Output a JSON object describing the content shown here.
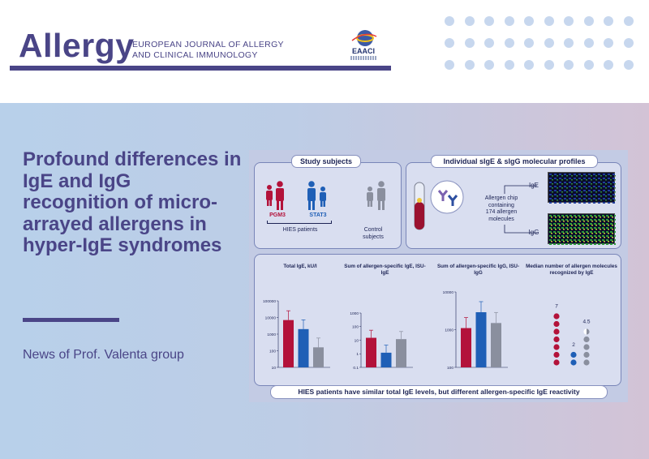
{
  "header": {
    "brand": "Allergy",
    "journal_line1": "European Journal of Allergy",
    "journal_line2": "and Clinical Immunology",
    "society_logo": "EAACI"
  },
  "banner": {
    "headline": "Profound differences in IgE and IgG recognition of  micro- arrayed allergens in hyper-IgE syndromes",
    "news": "News of Prof. Valenta group"
  },
  "figure": {
    "study_title": "Study subjects",
    "profile_title": "Individual sIgE & sIgG molecular profiles",
    "pgm3": "PGM3",
    "stat3": "STAT3",
    "hies": "HIES patients",
    "control_line1": "Control",
    "control_line2": "subjects",
    "chip_line1": "Allergen chip",
    "chip_line2": "containing",
    "chip_line3": "174 allergen",
    "chip_line4": "molecules",
    "ige": "IgE",
    "igg": "IgG",
    "conclusion": "HIES patients have similar total IgE levels, but different allergen-specific IgE reactivity",
    "colors": {
      "pgm3": "#b3123a",
      "stat3": "#1f5fb6",
      "control": "#8a8f9e"
    }
  },
  "chart_data": [
    {
      "type": "bar",
      "title": "Total IgE, kU/l",
      "categories": [
        "PGM3",
        "STAT3",
        "Control subjects"
      ],
      "values": [
        7000,
        2000,
        160
      ],
      "yscale": "log",
      "ylim": [
        10,
        100000
      ],
      "ticks": [
        "10",
        "100",
        "1000",
        "10000",
        "100000"
      ]
    },
    {
      "type": "bar",
      "title": "Sum of allergen-specific IgE, ISU-IgE",
      "categories": [
        "PGM3",
        "STAT3",
        "Control subjects"
      ],
      "values": [
        15,
        1.2,
        12
      ],
      "yscale": "log",
      "ylim": [
        0.1,
        1000
      ],
      "ticks": [
        "0.1",
        "1",
        "10",
        "100",
        "1000"
      ]
    },
    {
      "type": "bar",
      "title": "Sum of allergen-specific IgG, ISU-IgG",
      "categories": [
        "PGM3",
        "STAT3",
        "Control subjects"
      ],
      "values": [
        1100,
        2900,
        1500
      ],
      "yscale": "log",
      "ylim": [
        100,
        10000
      ],
      "ticks": [
        "100",
        "1000",
        "10000"
      ]
    },
    {
      "type": "scatter",
      "title": "Median number of allergen molecules recognized by IgE",
      "categories": [
        "PGM3",
        "STAT3",
        "Control subjects"
      ],
      "values": [
        7,
        2,
        4.5
      ],
      "labels": [
        "7",
        "2",
        "4.5"
      ]
    }
  ]
}
